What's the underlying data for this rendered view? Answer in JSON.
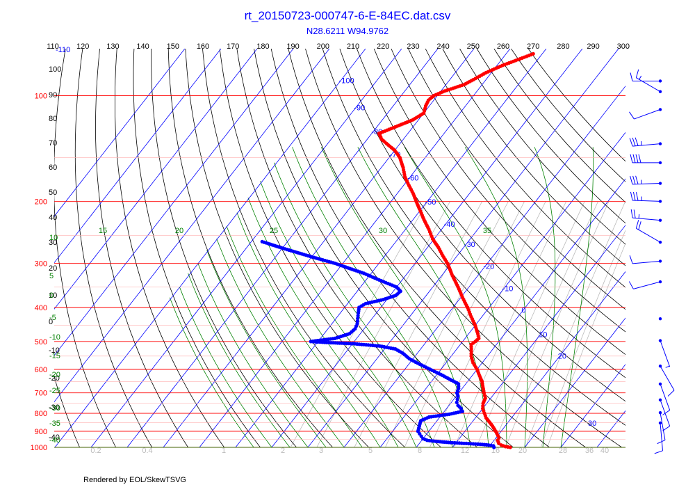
{
  "header": {
    "title": "rt_20150723-000747-6-E-84EC.dat.csv",
    "subtitle": "N28.6211 W94.9762"
  },
  "footer": {
    "rendered_by": "Rendered by EOL/SkewTSVG"
  },
  "colors": {
    "temperature": "#ff0000",
    "dewpoint": "#0000ff",
    "isobar": "#ff0000",
    "isotherm": "#0000ff",
    "dry_adiabat": "#000000",
    "moist_adiabat": "#008000",
    "mixing_ratio": "#bbbbbb",
    "wind_barb": "#0000ff"
  },
  "chart_data": {
    "type": "skew-t",
    "pressure_axis": {
      "ylim": [
        100,
        1000
      ],
      "scale": "log",
      "labels": [
        100,
        200,
        300,
        400,
        500,
        600,
        700,
        800,
        900,
        1000
      ]
    },
    "theta_labels": [
      110,
      120,
      130,
      140,
      150,
      160,
      170,
      180,
      190,
      200,
      210,
      220,
      230,
      240,
      250,
      260,
      270,
      280,
      290,
      300
    ],
    "isotherm_labels": [
      {
        "text": "-110",
        "T": -110
      },
      {
        "text": "-100",
        "T": -100
      },
      {
        "text": "-90",
        "T": -90
      },
      {
        "text": "-80",
        "T": -80
      },
      {
        "text": "-70",
        "T": -70
      },
      {
        "text": "-60",
        "T": -60
      },
      {
        "text": "-50",
        "T": -50
      },
      {
        "text": "-40",
        "T": -40
      },
      {
        "text": "-30",
        "T": -30
      },
      {
        "text": "-20",
        "T": -20
      },
      {
        "text": "-10",
        "T": -10
      },
      {
        "text": "0",
        "T": 0
      },
      {
        "text": "10",
        "T": 10
      },
      {
        "text": "20",
        "T": 20
      },
      {
        "text": "30",
        "T": 30
      }
    ],
    "left_dry_labels": [
      "100",
      "90",
      "80",
      "70",
      "60",
      "50",
      "40",
      "30",
      "20",
      "10",
      "0",
      "-10",
      "-20",
      "-30",
      "-40"
    ],
    "moist_left_labels": [
      "10",
      "5",
      "0",
      "-5",
      "-10",
      "-15",
      "-20",
      "-25",
      "-30",
      "-35",
      "-40"
    ],
    "moist_top_labels": [
      "15",
      "20",
      "25",
      "30",
      "35"
    ],
    "mixing_ratio_labels": [
      "0.2",
      "0.4",
      "1",
      "2",
      "3",
      "5",
      "8",
      "12",
      "16",
      "20",
      "28",
      "36",
      "40"
    ],
    "temperature_profile": [
      {
        "p": 1000,
        "T": 26.0
      },
      {
        "p": 995,
        "T": 24.5
      },
      {
        "p": 985,
        "T": 23.0
      },
      {
        "p": 975,
        "T": 22.0
      },
      {
        "p": 965,
        "T": 21.5
      },
      {
        "p": 955,
        "T": 21.0
      },
      {
        "p": 940,
        "T": 20.8
      },
      {
        "p": 925,
        "T": 20.0
      },
      {
        "p": 900,
        "T": 18.5
      },
      {
        "p": 870,
        "T": 16.5
      },
      {
        "p": 850,
        "T": 15.0
      },
      {
        "p": 825,
        "T": 13.0
      },
      {
        "p": 800,
        "T": 11.5
      },
      {
        "p": 775,
        "T": 10.0
      },
      {
        "p": 750,
        "T": 9.0
      },
      {
        "p": 725,
        "T": 8.5
      },
      {
        "p": 700,
        "T": 7.0
      },
      {
        "p": 675,
        "T": 5.5
      },
      {
        "p": 650,
        "T": 4.0
      },
      {
        "p": 625,
        "T": 2.0
      },
      {
        "p": 600,
        "T": 0.0
      },
      {
        "p": 575,
        "T": -2.5
      },
      {
        "p": 550,
        "T": -4.5
      },
      {
        "p": 525,
        "T": -6.0
      },
      {
        "p": 510,
        "T": -7.0
      },
      {
        "p": 500,
        "T": -6.5
      },
      {
        "p": 490,
        "T": -6.2
      },
      {
        "p": 475,
        "T": -7.5
      },
      {
        "p": 450,
        "T": -10.0
      },
      {
        "p": 425,
        "T": -13.0
      },
      {
        "p": 400,
        "T": -16.0
      },
      {
        "p": 375,
        "T": -19.5
      },
      {
        "p": 350,
        "T": -23.0
      },
      {
        "p": 325,
        "T": -27.0
      },
      {
        "p": 300,
        "T": -31.0
      },
      {
        "p": 285,
        "T": -34.0
      },
      {
        "p": 270,
        "T": -37.0
      },
      {
        "p": 255,
        "T": -40.5
      },
      {
        "p": 240,
        "T": -43.5
      },
      {
        "p": 225,
        "T": -47.0
      },
      {
        "p": 210,
        "T": -50.5
      },
      {
        "p": 200,
        "T": -53.0
      },
      {
        "p": 190,
        "T": -55.5
      },
      {
        "p": 180,
        "T": -58.5
      },
      {
        "p": 170,
        "T": -61.5
      },
      {
        "p": 160,
        "T": -64.0
      },
      {
        "p": 150,
        "T": -67.0
      },
      {
        "p": 143,
        "T": -70.0
      },
      {
        "p": 138,
        "T": -73.0
      },
      {
        "p": 133,
        "T": -76.0
      },
      {
        "p": 128,
        "T": -78.0
      },
      {
        "p": 122,
        "T": -74.5
      },
      {
        "p": 117,
        "T": -71.5
      },
      {
        "p": 112,
        "T": -70.0
      },
      {
        "p": 107,
        "T": -71.0
      },
      {
        "p": 103,
        "T": -71.5
      },
      {
        "p": 100,
        "T": -71.0
      },
      {
        "p": 97,
        "T": -69.0
      },
      {
        "p": 93,
        "T": -65.0
      },
      {
        "p": 90,
        "T": -63.5
      },
      {
        "p": 86,
        "T": -61.5
      },
      {
        "p": 82,
        "T": -58.5
      },
      {
        "p": 79,
        "T": -55.5
      },
      {
        "p": 76,
        "T": -52.5
      }
    ],
    "dewpoint_profile": [
      {
        "p": 1000,
        "Td": 21.5
      },
      {
        "p": 990,
        "Td": 21.0
      },
      {
        "p": 985,
        "Td": 19.5
      },
      {
        "p": 980,
        "Td": 17.0
      },
      {
        "p": 975,
        "Td": 13.0
      },
      {
        "p": 970,
        "Td": 9.0
      },
      {
        "p": 965,
        "Td": 6.0
      },
      {
        "p": 960,
        "Td": 3.5
      },
      {
        "p": 955,
        "Td": 1.5
      },
      {
        "p": 945,
        "Td": 0.0
      },
      {
        "p": 930,
        "Td": -1.0
      },
      {
        "p": 915,
        "Td": -2.0
      },
      {
        "p": 900,
        "Td": -3.0
      },
      {
        "p": 880,
        "Td": -3.5
      },
      {
        "p": 860,
        "Td": -4.0
      },
      {
        "p": 840,
        "Td": -4.5
      },
      {
        "p": 820,
        "Td": -3.0
      },
      {
        "p": 805,
        "Td": 2.0
      },
      {
        "p": 790,
        "Td": 5.0
      },
      {
        "p": 775,
        "Td": 4.0
      },
      {
        "p": 760,
        "Td": 2.5
      },
      {
        "p": 745,
        "Td": 1.5
      },
      {
        "p": 730,
        "Td": 1.0
      },
      {
        "p": 715,
        "Td": 0.5
      },
      {
        "p": 700,
        "Td": -0.5
      },
      {
        "p": 680,
        "Td": -1.0
      },
      {
        "p": 660,
        "Td": -2.0
      },
      {
        "p": 640,
        "Td": -5.5
      },
      {
        "p": 620,
        "Td": -9.0
      },
      {
        "p": 600,
        "Td": -13.0
      },
      {
        "p": 580,
        "Td": -17.0
      },
      {
        "p": 560,
        "Td": -21.0
      },
      {
        "p": 540,
        "Td": -24.0
      },
      {
        "p": 525,
        "Td": -27.0
      },
      {
        "p": 515,
        "Td": -32.0
      },
      {
        "p": 507,
        "Td": -40.0
      },
      {
        "p": 503,
        "Td": -48.0
      },
      {
        "p": 500,
        "Td": -52.0
      },
      {
        "p": 490,
        "Td": -46.0
      },
      {
        "p": 475,
        "Td": -43.0
      },
      {
        "p": 460,
        "Td": -42.5
      },
      {
        "p": 445,
        "Td": -43.0
      },
      {
        "p": 430,
        "Td": -44.0
      },
      {
        "p": 415,
        "Td": -45.0
      },
      {
        "p": 400,
        "Td": -46.0
      },
      {
        "p": 390,
        "Td": -45.0
      },
      {
        "p": 380,
        "Td": -41.0
      },
      {
        "p": 370,
        "Td": -38.5
      },
      {
        "p": 360,
        "Td": -38.0
      },
      {
        "p": 350,
        "Td": -40.0
      },
      {
        "p": 340,
        "Td": -44.0
      },
      {
        "p": 330,
        "Td": -48.0
      },
      {
        "p": 320,
        "Td": -52.0
      },
      {
        "p": 310,
        "Td": -57.0
      },
      {
        "p": 300,
        "Td": -62.0
      },
      {
        "p": 292,
        "Td": -67.0
      },
      {
        "p": 284,
        "Td": -72.0
      },
      {
        "p": 276,
        "Td": -77.0
      },
      {
        "p": 268,
        "Td": -82.0
      },
      {
        "p": 260,
        "Td": -87.0
      }
    ],
    "wind_barbs": [
      {
        "p": 90,
        "speed_kt": 10,
        "dir_deg": 270
      },
      {
        "p": 97,
        "speed_kt": 15,
        "dir_deg": 300
      },
      {
        "p": 110,
        "speed_kt": 10,
        "dir_deg": 250
      },
      {
        "p": 140,
        "speed_kt": 35,
        "dir_deg": 265
      },
      {
        "p": 160,
        "speed_kt": 40,
        "dir_deg": 270
      },
      {
        "p": 185,
        "speed_kt": 35,
        "dir_deg": 268
      },
      {
        "p": 210,
        "speed_kt": 35,
        "dir_deg": 272
      },
      {
        "p": 240,
        "speed_kt": 25,
        "dir_deg": 275
      },
      {
        "p": 280,
        "speed_kt": 20,
        "dir_deg": 300
      },
      {
        "p": 320,
        "speed_kt": 10,
        "dir_deg": 265
      },
      {
        "p": 370,
        "speed_kt": 10,
        "dir_deg": 255
      },
      {
        "p": 480,
        "speed_kt": 0,
        "dir_deg": 0
      },
      {
        "p": 560,
        "speed_kt": 5,
        "dir_deg": 160
      },
      {
        "p": 670,
        "speed_kt": 10,
        "dir_deg": 150
      },
      {
        "p": 760,
        "speed_kt": 10,
        "dir_deg": 160
      },
      {
        "p": 850,
        "speed_kt": 10,
        "dir_deg": 160
      },
      {
        "p": 930,
        "speed_kt": 10,
        "dir_deg": 170
      },
      {
        "p": 1000,
        "speed_kt": 10,
        "dir_deg": 175
      }
    ]
  }
}
